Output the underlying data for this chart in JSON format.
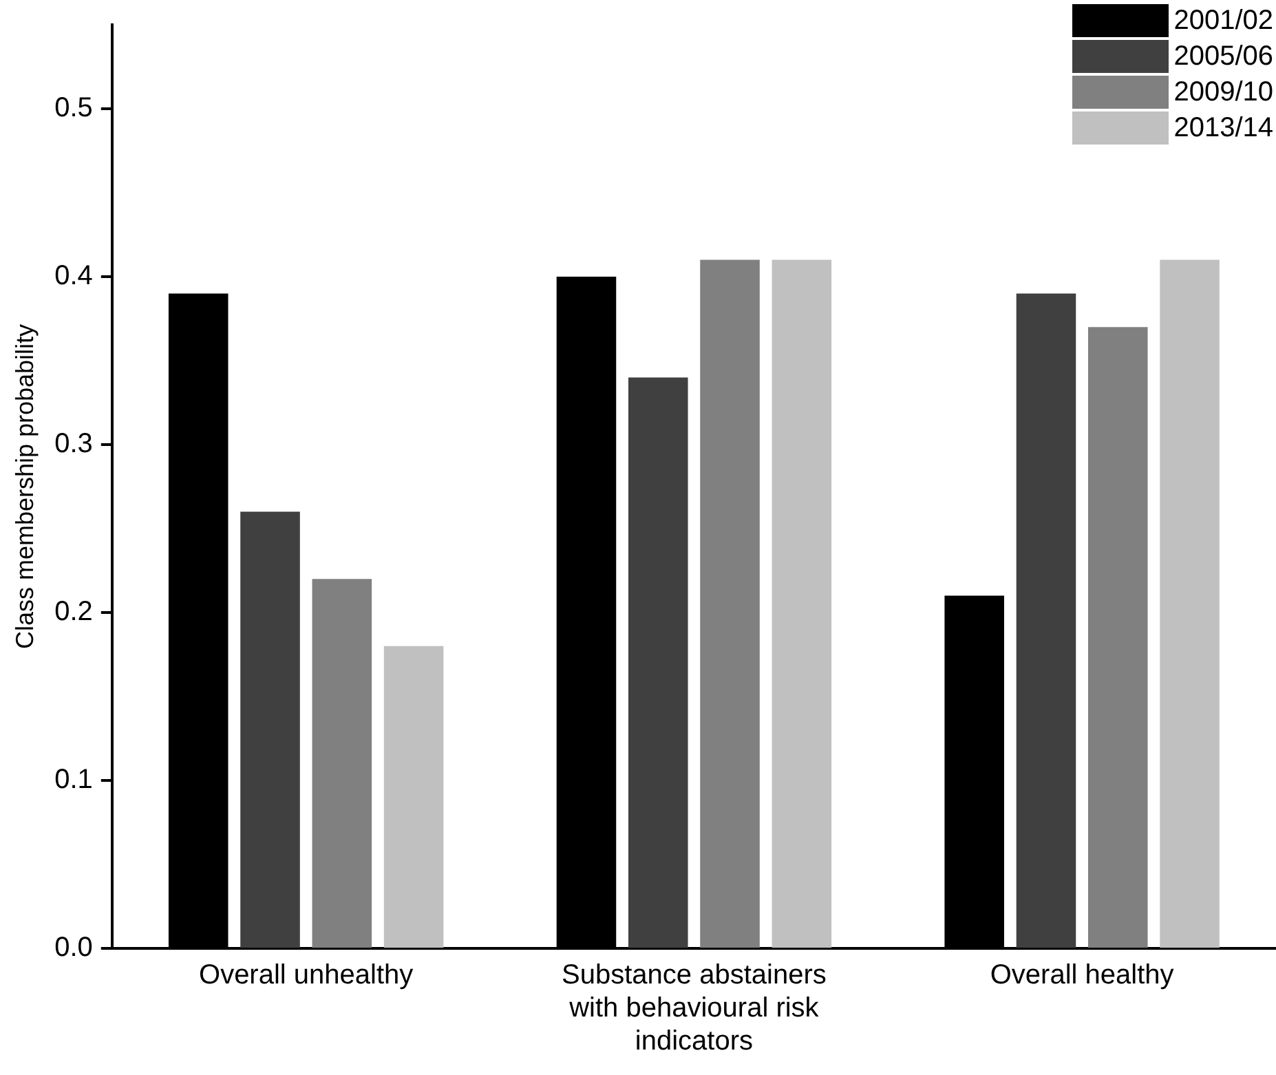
{
  "chart_data": {
    "type": "bar",
    "ylabel": "Class membership probability",
    "categories": [
      "Overall unhealthy",
      "Substance abstainers with behavioural risk indicators",
      "Overall healthy"
    ],
    "series": [
      {
        "name": "2001/02",
        "color": "#000000",
        "values": [
          0.39,
          0.4,
          0.21
        ]
      },
      {
        "name": "2005/06",
        "color": "#404040",
        "values": [
          0.26,
          0.34,
          0.39
        ]
      },
      {
        "name": "2009/10",
        "color": "#808080",
        "values": [
          0.22,
          0.41,
          0.37
        ]
      },
      {
        "name": "2013/14",
        "color": "#c0c0c0",
        "values": [
          0.18,
          0.41,
          0.41
        ]
      }
    ],
    "ylim": [
      0,
      0.55
    ],
    "yticks": [
      {
        "value": 0,
        "label": "0.0"
      },
      {
        "value": 0.1,
        "label": "0.1"
      },
      {
        "value": 0.2,
        "label": "0.2"
      },
      {
        "value": 0.3,
        "label": "0.3"
      },
      {
        "value": 0.4,
        "label": "0.4"
      },
      {
        "value": 0.5,
        "label": "0.5"
      }
    ],
    "grid": false,
    "legend": "top right"
  }
}
